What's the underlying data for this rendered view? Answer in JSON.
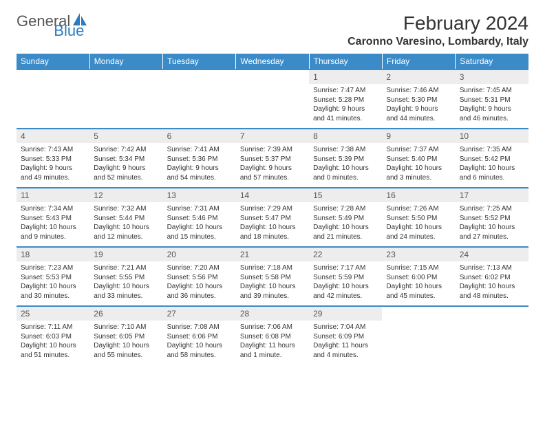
{
  "brand": {
    "text1": "General",
    "text2": "Blue"
  },
  "title": "February 2024",
  "location": "Caronno Varesino, Lombardy, Italy",
  "dow": [
    "Sunday",
    "Monday",
    "Tuesday",
    "Wednesday",
    "Thursday",
    "Friday",
    "Saturday"
  ],
  "colors": {
    "header_bg": "#3b8bc8",
    "header_text": "#ffffff",
    "row_border": "#3b8bc8",
    "daynum_bg": "#ededed",
    "brand_blue": "#2b7bbf"
  },
  "typography": {
    "title_fontsize": 28,
    "location_fontsize": 16,
    "dow_fontsize": 12,
    "daynum_fontsize": 12,
    "body_fontsize": 10
  },
  "weeks": [
    [
      null,
      null,
      null,
      null,
      {
        "n": "1",
        "sunrise": "7:47 AM",
        "sunset": "5:28 PM",
        "daylight": "9 hours and 41 minutes."
      },
      {
        "n": "2",
        "sunrise": "7:46 AM",
        "sunset": "5:30 PM",
        "daylight": "9 hours and 44 minutes."
      },
      {
        "n": "3",
        "sunrise": "7:45 AM",
        "sunset": "5:31 PM",
        "daylight": "9 hours and 46 minutes."
      }
    ],
    [
      {
        "n": "4",
        "sunrise": "7:43 AM",
        "sunset": "5:33 PM",
        "daylight": "9 hours and 49 minutes."
      },
      {
        "n": "5",
        "sunrise": "7:42 AM",
        "sunset": "5:34 PM",
        "daylight": "9 hours and 52 minutes."
      },
      {
        "n": "6",
        "sunrise": "7:41 AM",
        "sunset": "5:36 PM",
        "daylight": "9 hours and 54 minutes."
      },
      {
        "n": "7",
        "sunrise": "7:39 AM",
        "sunset": "5:37 PM",
        "daylight": "9 hours and 57 minutes."
      },
      {
        "n": "8",
        "sunrise": "7:38 AM",
        "sunset": "5:39 PM",
        "daylight": "10 hours and 0 minutes."
      },
      {
        "n": "9",
        "sunrise": "7:37 AM",
        "sunset": "5:40 PM",
        "daylight": "10 hours and 3 minutes."
      },
      {
        "n": "10",
        "sunrise": "7:35 AM",
        "sunset": "5:42 PM",
        "daylight": "10 hours and 6 minutes."
      }
    ],
    [
      {
        "n": "11",
        "sunrise": "7:34 AM",
        "sunset": "5:43 PM",
        "daylight": "10 hours and 9 minutes."
      },
      {
        "n": "12",
        "sunrise": "7:32 AM",
        "sunset": "5:44 PM",
        "daylight": "10 hours and 12 minutes."
      },
      {
        "n": "13",
        "sunrise": "7:31 AM",
        "sunset": "5:46 PM",
        "daylight": "10 hours and 15 minutes."
      },
      {
        "n": "14",
        "sunrise": "7:29 AM",
        "sunset": "5:47 PM",
        "daylight": "10 hours and 18 minutes."
      },
      {
        "n": "15",
        "sunrise": "7:28 AM",
        "sunset": "5:49 PM",
        "daylight": "10 hours and 21 minutes."
      },
      {
        "n": "16",
        "sunrise": "7:26 AM",
        "sunset": "5:50 PM",
        "daylight": "10 hours and 24 minutes."
      },
      {
        "n": "17",
        "sunrise": "7:25 AM",
        "sunset": "5:52 PM",
        "daylight": "10 hours and 27 minutes."
      }
    ],
    [
      {
        "n": "18",
        "sunrise": "7:23 AM",
        "sunset": "5:53 PM",
        "daylight": "10 hours and 30 minutes."
      },
      {
        "n": "19",
        "sunrise": "7:21 AM",
        "sunset": "5:55 PM",
        "daylight": "10 hours and 33 minutes."
      },
      {
        "n": "20",
        "sunrise": "7:20 AM",
        "sunset": "5:56 PM",
        "daylight": "10 hours and 36 minutes."
      },
      {
        "n": "21",
        "sunrise": "7:18 AM",
        "sunset": "5:58 PM",
        "daylight": "10 hours and 39 minutes."
      },
      {
        "n": "22",
        "sunrise": "7:17 AM",
        "sunset": "5:59 PM",
        "daylight": "10 hours and 42 minutes."
      },
      {
        "n": "23",
        "sunrise": "7:15 AM",
        "sunset": "6:00 PM",
        "daylight": "10 hours and 45 minutes."
      },
      {
        "n": "24",
        "sunrise": "7:13 AM",
        "sunset": "6:02 PM",
        "daylight": "10 hours and 48 minutes."
      }
    ],
    [
      {
        "n": "25",
        "sunrise": "7:11 AM",
        "sunset": "6:03 PM",
        "daylight": "10 hours and 51 minutes."
      },
      {
        "n": "26",
        "sunrise": "7:10 AM",
        "sunset": "6:05 PM",
        "daylight": "10 hours and 55 minutes."
      },
      {
        "n": "27",
        "sunrise": "7:08 AM",
        "sunset": "6:06 PM",
        "daylight": "10 hours and 58 minutes."
      },
      {
        "n": "28",
        "sunrise": "7:06 AM",
        "sunset": "6:08 PM",
        "daylight": "11 hours and 1 minute."
      },
      {
        "n": "29",
        "sunrise": "7:04 AM",
        "sunset": "6:09 PM",
        "daylight": "11 hours and 4 minutes."
      },
      null,
      null
    ]
  ],
  "labels": {
    "sunrise": "Sunrise:",
    "sunset": "Sunset:",
    "daylight": "Daylight:"
  }
}
